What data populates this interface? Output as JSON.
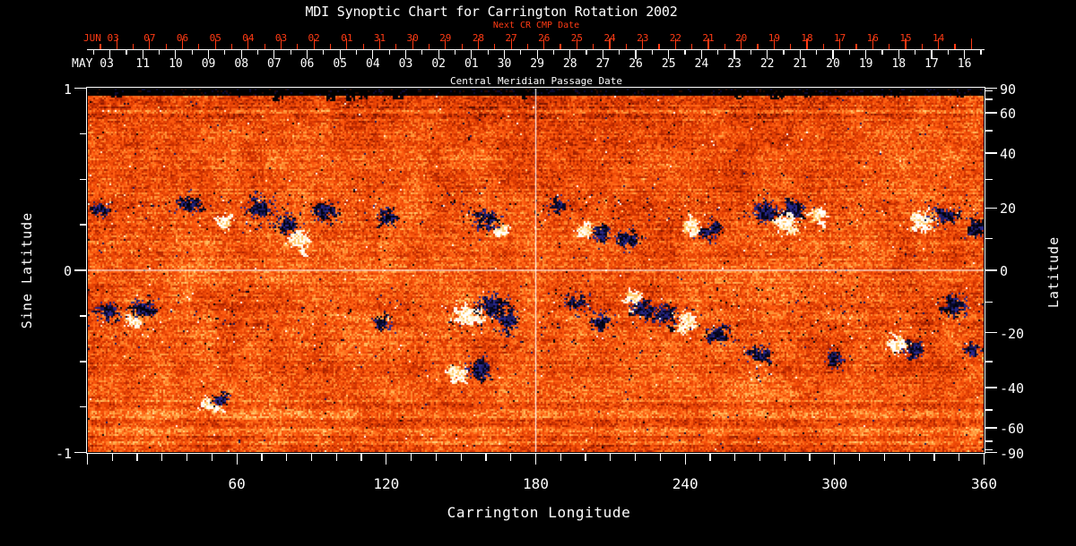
{
  "title": "MDI Synoptic Chart for Carrington Rotation 2002",
  "colors": {
    "background": "#000000",
    "text_white": "#ffffff",
    "accent_red": "#ff3b14",
    "quiet_sun_orange": "#e84404",
    "negative_polarity_dark": "#08082e",
    "positive_polarity_white": "#ffffff",
    "crosshair": "#ffffff"
  },
  "axes": {
    "top": {
      "next_cr": {
        "label": "Next CR CMP Date",
        "month": "JUN 03",
        "days": [
          "07",
          "06",
          "05",
          "04",
          "03",
          "02",
          "01",
          "31",
          "30",
          "29",
          "28",
          "27",
          "26",
          "25",
          "24",
          "23",
          "22",
          "21",
          "20",
          "19",
          "18",
          "17",
          "16",
          "15",
          "14"
        ]
      },
      "cmp": {
        "month": "MAY 03",
        "axis_label": "Central Meridian Passage Date",
        "days": [
          "11",
          "10",
          "09",
          "08",
          "07",
          "06",
          "05",
          "04",
          "03",
          "02",
          "01",
          "30",
          "29",
          "28",
          "27",
          "26",
          "25",
          "24",
          "23",
          "22",
          "21",
          "20",
          "19",
          "18",
          "17",
          "16"
        ]
      }
    },
    "left": {
      "label": "Sine Latitude",
      "tick_labels": [
        "1",
        "0",
        "-1"
      ]
    },
    "right": {
      "label": "Latitude",
      "tick_labels": [
        "90",
        "60",
        "40",
        "20",
        "0",
        "-20",
        "-40",
        "-60",
        "-90"
      ]
    },
    "bottom": {
      "label": "Carrington Longitude",
      "tick_labels": [
        "60",
        "120",
        "180",
        "240",
        "300",
        "360"
      ]
    }
  },
  "chart_data": {
    "type": "heatmap",
    "title": "MDI Synoptic Chart for Carrington Rotation 2002",
    "xlabel": "Carrington Longitude",
    "ylabel_left": "Sine Latitude",
    "ylabel_right": "Latitude",
    "xlim": [
      0,
      360
    ],
    "ylim_sine_latitude": [
      -1,
      1
    ],
    "x_major_ticks": [
      60,
      120,
      180,
      240,
      300,
      360
    ],
    "x_minor_step_deg": 10,
    "left_major_ticks_sine": [
      1,
      0,
      -1
    ],
    "left_minor_step_sine": 0.25,
    "right_ticks_deg": [
      90,
      60,
      40,
      20,
      0,
      -20,
      -40,
      -60,
      -90
    ],
    "right_minor_step_deg": 10,
    "crosshair": {
      "longitude": 180,
      "latitude": 0
    },
    "grid": "crosshair-only",
    "polar_gap": "thin black band along top (north pole) edge",
    "colormap_stops": [
      "#3c0800",
      "#8c1800",
      "#c82e00",
      "#e84404",
      "#ff5c10",
      "#ff8c30",
      "#ffbe60",
      "#ffe6a0"
    ],
    "activity_belts": {
      "north_center_sine": 0.345,
      "south_center_sine": -0.27
    },
    "active_regions": [
      {
        "lon": 40,
        "lat": 22,
        "polarity": "negative",
        "size": 6,
        "strength": 1.5
      },
      {
        "lon": 55,
        "lat": 15,
        "polarity": "positive",
        "size": 3,
        "strength": 1
      },
      {
        "lon": 69,
        "lat": 20,
        "polarity": "negative",
        "size": 7,
        "strength": 2
      },
      {
        "lon": 84,
        "lat": 10,
        "polarity": "positive",
        "size": 4,
        "strength": 2.5
      },
      {
        "lon": 79,
        "lat": 15,
        "polarity": "negative",
        "size": 5,
        "strength": 1.5
      },
      {
        "lon": 95,
        "lat": 19,
        "polarity": "negative",
        "size": 5,
        "strength": 1.5
      },
      {
        "lon": 120,
        "lat": 17,
        "polarity": "negative",
        "size": 5,
        "strength": 1
      },
      {
        "lon": 118,
        "lat": -17,
        "polarity": "negative",
        "size": 4,
        "strength": 0.8
      },
      {
        "lon": 160,
        "lat": 16,
        "polarity": "negative",
        "size": 6,
        "strength": 2
      },
      {
        "lon": 166,
        "lat": 13,
        "polarity": "positive",
        "size": 3,
        "strength": 1
      },
      {
        "lon": 188,
        "lat": 21,
        "polarity": "negative",
        "size": 4,
        "strength": 1
      },
      {
        "lon": 199,
        "lat": 13,
        "polarity": "positive",
        "size": 3,
        "strength": 1.5
      },
      {
        "lon": 206,
        "lat": 12,
        "polarity": "negative",
        "size": 4,
        "strength": 1.5
      },
      {
        "lon": 217,
        "lat": 10,
        "polarity": "negative",
        "size": 5,
        "strength": 1.5
      },
      {
        "lon": 242,
        "lat": 14,
        "polarity": "positive",
        "size": 3,
        "strength": 1.5
      },
      {
        "lon": 250,
        "lat": 12,
        "polarity": "negative",
        "size": 4,
        "strength": 1
      },
      {
        "lon": 272,
        "lat": 19,
        "polarity": "negative",
        "size": 5,
        "strength": 2.8
      },
      {
        "lon": 283,
        "lat": 20,
        "polarity": "negative",
        "size": 4,
        "strength": 2.5
      },
      {
        "lon": 281,
        "lat": 15,
        "polarity": "positive",
        "size": 5,
        "strength": 2.5
      },
      {
        "lon": 292,
        "lat": 18,
        "polarity": "positive",
        "size": 3,
        "strength": 1.5
      },
      {
        "lon": 334,
        "lat": 16,
        "polarity": "positive",
        "size": 5,
        "strength": 2.2
      },
      {
        "lon": 344,
        "lat": 18,
        "polarity": "negative",
        "size": 5,
        "strength": 1.5
      },
      {
        "lon": 357,
        "lat": 14,
        "polarity": "negative",
        "size": 5,
        "strength": 1.5
      },
      {
        "lon": 5,
        "lat": 20,
        "polarity": "negative",
        "size": 4,
        "strength": 1
      },
      {
        "lon": 8,
        "lat": -13,
        "polarity": "negative",
        "size": 5,
        "strength": 1.5
      },
      {
        "lon": 22,
        "lat": -12,
        "polarity": "negative",
        "size": 5,
        "strength": 2
      },
      {
        "lon": 18,
        "lat": -16,
        "polarity": "positive",
        "size": 3,
        "strength": 1
      },
      {
        "lon": 48,
        "lat": -47,
        "polarity": "positive",
        "size": 3,
        "strength": 1.2
      },
      {
        "lon": 53,
        "lat": -45,
        "polarity": "negative",
        "size": 3,
        "strength": 1
      },
      {
        "lon": 152,
        "lat": -14,
        "polarity": "positive",
        "size": 7,
        "strength": 3
      },
      {
        "lon": 162,
        "lat": -11,
        "polarity": "negative",
        "size": 6,
        "strength": 3
      },
      {
        "lon": 168,
        "lat": -16,
        "polarity": "negative",
        "size": 4,
        "strength": 2
      },
      {
        "lon": 148,
        "lat": -34,
        "polarity": "positive",
        "size": 4,
        "strength": 2.2
      },
      {
        "lon": 157,
        "lat": -33,
        "polarity": "negative",
        "size": 5,
        "strength": 2.2
      },
      {
        "lon": 196,
        "lat": -10,
        "polarity": "negative",
        "size": 6,
        "strength": 1.2
      },
      {
        "lon": 205,
        "lat": -16,
        "polarity": "negative",
        "size": 5,
        "strength": 1.2
      },
      {
        "lon": 219,
        "lat": -8,
        "polarity": "positive",
        "size": 3,
        "strength": 1.5
      },
      {
        "lon": 222,
        "lat": -12,
        "polarity": "negative",
        "size": 4,
        "strength": 1.5
      },
      {
        "lon": 231,
        "lat": -14,
        "polarity": "negative",
        "size": 5,
        "strength": 2
      },
      {
        "lon": 240,
        "lat": -17,
        "polarity": "positive",
        "size": 4,
        "strength": 2.2
      },
      {
        "lon": 253,
        "lat": -20,
        "polarity": "negative",
        "size": 5,
        "strength": 1.5
      },
      {
        "lon": 270,
        "lat": -27,
        "polarity": "negative",
        "size": 5,
        "strength": 1.2
      },
      {
        "lon": 300,
        "lat": -29,
        "polarity": "negative",
        "size": 4,
        "strength": 1.5
      },
      {
        "lon": 325,
        "lat": -24,
        "polarity": "positive",
        "size": 4,
        "strength": 2
      },
      {
        "lon": 331,
        "lat": -26,
        "polarity": "negative",
        "size": 3,
        "strength": 1.2
      },
      {
        "lon": 348,
        "lat": -11,
        "polarity": "negative",
        "size": 5,
        "strength": 2
      },
      {
        "lon": 355,
        "lat": -26,
        "polarity": "negative",
        "size": 3,
        "strength": 1
      }
    ]
  }
}
